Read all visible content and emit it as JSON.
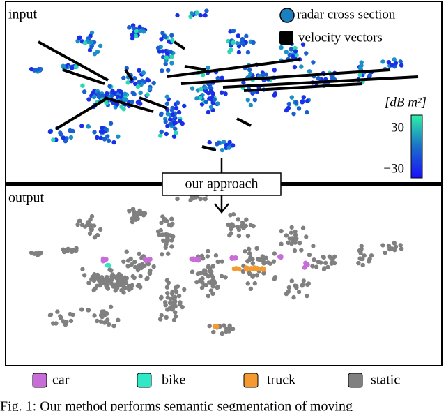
{
  "panels": {
    "input": {
      "label": "input"
    },
    "output": {
      "label": "output"
    }
  },
  "input_legend": {
    "rcs": "radar cross section",
    "velocity": "velocity vectors"
  },
  "colorbar": {
    "label": "[dB m²]",
    "max_label": "30",
    "min_label": "−30"
  },
  "process": {
    "label": "our approach"
  },
  "legend": {
    "car": "car",
    "bike": "bike",
    "truck": "truck",
    "static": "static"
  },
  "caption": {
    "text": "Fig. 1: Our method performs semantic segmentation of moving"
  }
}
